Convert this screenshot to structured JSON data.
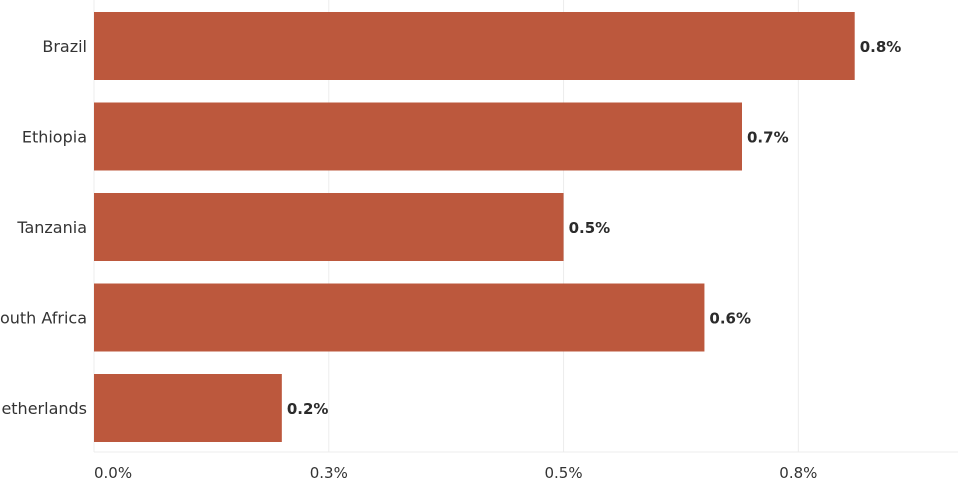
{
  "chart_data": {
    "type": "bar",
    "orientation": "horizontal",
    "categories": [
      "Brazil",
      "Ethiopia",
      "Tanzania",
      "South Africa",
      "Netherlands"
    ],
    "values": [
      0.81,
      0.69,
      0.5,
      0.65,
      0.2
    ],
    "value_labels": [
      "0.8%",
      "0.7%",
      "0.5%",
      "0.6%",
      "0.2%"
    ],
    "xticks": [
      0.0,
      0.25,
      0.5,
      0.75
    ],
    "xtick_labels": [
      "0.0%",
      "0.3%",
      "0.5%",
      "0.8%"
    ],
    "xlim": [
      0,
      0.92
    ],
    "grid": true,
    "bar_color": "#bc583d"
  }
}
